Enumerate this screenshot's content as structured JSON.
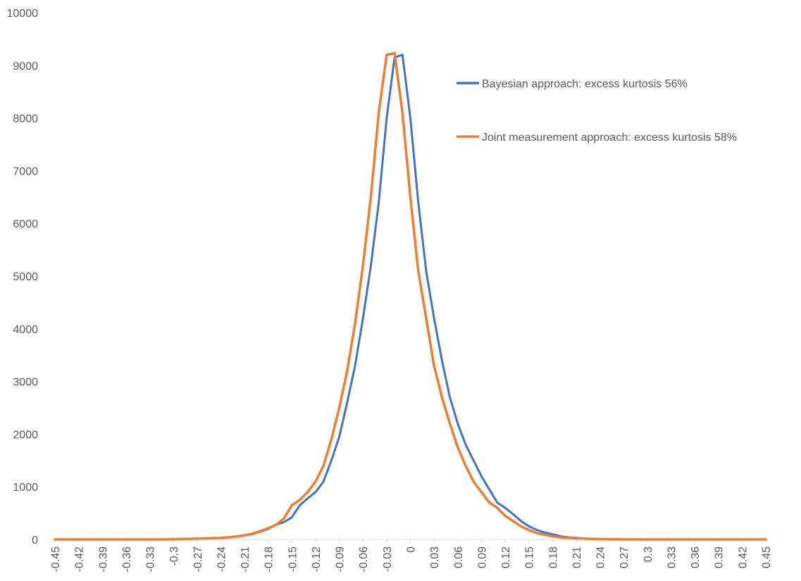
{
  "chart_data": {
    "type": "line",
    "title": "",
    "xlabel": "",
    "ylabel": "",
    "ylim": [
      0,
      10000
    ],
    "y_ticks": [
      0,
      1000,
      2000,
      3000,
      4000,
      5000,
      6000,
      7000,
      8000,
      9000,
      10000
    ],
    "x_tick_labels": [
      "-0.45",
      "-0.42",
      "-0.39",
      "-0.36",
      "-0.33",
      "-0.3",
      "-0.27",
      "-0.24",
      "-0.21",
      "-0.18",
      "-0.15",
      "-0.12",
      "-0.09",
      "-0.06",
      "-0.03",
      "0",
      "0.03",
      "0.06",
      "0.09",
      "0.12",
      "0.15",
      "0.18",
      "0.21",
      "0.24",
      "0.27",
      "0.3",
      "0.33",
      "0.36",
      "0.39",
      "0.42",
      "0.45"
    ],
    "x": [
      -0.45,
      -0.44,
      -0.43,
      -0.42,
      -0.41,
      -0.4,
      -0.39,
      -0.38,
      -0.37,
      -0.36,
      -0.35,
      -0.34,
      -0.33,
      -0.32,
      -0.31,
      -0.3,
      -0.29,
      -0.28,
      -0.27,
      -0.26,
      -0.25,
      -0.24,
      -0.23,
      -0.22,
      -0.21,
      -0.2,
      -0.19,
      -0.18,
      -0.17,
      -0.16,
      -0.15,
      -0.14,
      -0.13,
      -0.12,
      -0.11,
      -0.1,
      -0.09,
      -0.08,
      -0.07,
      -0.06,
      -0.05,
      -0.04,
      -0.03,
      -0.02,
      -0.01,
      0,
      0.01,
      0.02,
      0.03,
      0.04,
      0.05,
      0.06,
      0.07,
      0.08,
      0.09,
      0.1,
      0.11,
      0.12,
      0.13,
      0.14,
      0.15,
      0.16,
      0.17,
      0.18,
      0.19,
      0.2,
      0.21,
      0.22,
      0.23,
      0.24,
      0.25,
      0.26,
      0.27,
      0.28,
      0.29,
      0.3,
      0.31,
      0.32,
      0.33,
      0.34,
      0.35,
      0.36,
      0.37,
      0.38,
      0.39,
      0.4,
      0.41,
      0.42,
      0.43,
      0.44,
      0.45
    ],
    "series": [
      {
        "name": "Bayesian approach: excess kurtosis 56%",
        "color": "#4472c4",
        "values": [
          0,
          0,
          0,
          0,
          0,
          0,
          0,
          0,
          0,
          0,
          0,
          0,
          0,
          0,
          0,
          5,
          8,
          10,
          15,
          20,
          25,
          30,
          40,
          60,
          80,
          100,
          150,
          200,
          280,
          330,
          420,
          650,
          780,
          900,
          1100,
          1500,
          1950,
          2600,
          3300,
          4200,
          5200,
          6400,
          8000,
          9150,
          9200,
          8000,
          6400,
          5100,
          4200,
          3400,
          2700,
          2200,
          1800,
          1500,
          1200,
          950,
          700,
          600,
          480,
          350,
          250,
          180,
          130,
          100,
          60,
          40,
          30,
          20,
          10,
          8,
          5,
          3,
          2,
          1,
          0,
          0,
          0,
          0,
          0,
          0,
          0,
          0,
          0,
          0,
          0,
          0,
          0,
          0,
          0,
          0,
          0
        ]
      },
      {
        "name": "Joint measurement approach: excess kurtosis 58%",
        "color": "#ed7d31",
        "values": [
          0,
          0,
          0,
          0,
          0,
          0,
          0,
          0,
          0,
          0,
          0,
          0,
          0,
          0,
          0,
          5,
          8,
          10,
          15,
          20,
          25,
          30,
          40,
          55,
          75,
          110,
          160,
          210,
          280,
          400,
          650,
          750,
          900,
          1100,
          1400,
          1900,
          2500,
          3200,
          4100,
          5200,
          6500,
          8100,
          9200,
          9230,
          8100,
          6500,
          5100,
          4200,
          3300,
          2700,
          2200,
          1750,
          1400,
          1100,
          900,
          700,
          600,
          450,
          350,
          250,
          180,
          120,
          90,
          60,
          40,
          30,
          20,
          15,
          10,
          8,
          5,
          3,
          2,
          1,
          0,
          0,
          0,
          0,
          0,
          0,
          0,
          0,
          0,
          0,
          0,
          0,
          0,
          0,
          0,
          0,
          0
        ]
      }
    ],
    "legend": {
      "position": "top-right",
      "entries": [
        "Bayesian approach: excess kurtosis 56%",
        "Joint measurement approach: excess kurtosis 58%"
      ]
    },
    "grid": false,
    "background": "#ffffff",
    "text_color": "#595959",
    "axis_color": "#d9d9d9"
  }
}
